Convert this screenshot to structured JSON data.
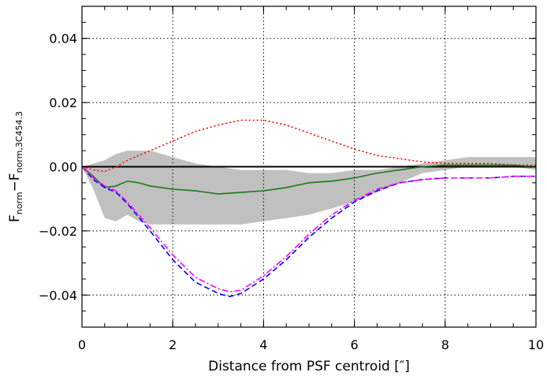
{
  "chart_data": {
    "type": "line",
    "title": "",
    "xlabel": "Distance from PSF centroid [″]",
    "ylabel": {
      "main_a": "F",
      "sub_a": "norm",
      "minus": "−",
      "main_b": "F",
      "sub_b": "norm,3C454.3"
    },
    "xlim": [
      0,
      10
    ],
    "ylim": [
      -0.05,
      0.05
    ],
    "grid": true,
    "x_ticks": [
      0,
      2,
      4,
      6,
      8,
      10
    ],
    "x_tick_labels": [
      "0",
      "2",
      "4",
      "6",
      "8",
      "10"
    ],
    "y_ticks": [
      -0.04,
      -0.02,
      0.0,
      0.02,
      0.04
    ],
    "y_tick_labels": [
      "−0.04",
      "−0.02",
      "0.00",
      "0.02",
      "0.04"
    ],
    "band": {
      "color": "#c0c0c0",
      "x": [
        0,
        0.25,
        0.5,
        0.75,
        1.0,
        1.25,
        1.5,
        2.0,
        2.5,
        3.0,
        3.5,
        4.0,
        4.5,
        5.0,
        5.5,
        6.0,
        6.5,
        7.0,
        7.5,
        8.0,
        8.5,
        9.0,
        9.5,
        10.0
      ],
      "upper": [
        0,
        0.001,
        0.002,
        0.004,
        0.005,
        0.005,
        0.005,
        0.003,
        0.001,
        0.0,
        -0.001,
        -0.001,
        -0.001,
        -0.002,
        -0.002,
        -0.001,
        -0.001,
        0.0,
        0.001,
        0.002,
        0.003,
        0.003,
        0.003,
        0.003
      ],
      "lower": [
        0,
        -0.007,
        -0.016,
        -0.017,
        -0.015,
        -0.017,
        -0.018,
        -0.018,
        -0.018,
        -0.018,
        -0.018,
        -0.017,
        -0.016,
        -0.015,
        -0.013,
        -0.011,
        -0.008,
        -0.005,
        -0.002,
        -0.001,
        0.0,
        0.0,
        0.0,
        -0.001
      ]
    },
    "series": [
      {
        "color": "#1a7a1a",
        "dash": "solid",
        "x": [
          0,
          0.25,
          0.5,
          0.75,
          1.0,
          1.25,
          1.5,
          2.0,
          2.5,
          3.0,
          3.5,
          4.0,
          4.5,
          5.0,
          5.5,
          6.0,
          6.5,
          7.0,
          7.5,
          8.0,
          8.5,
          9.0,
          9.5,
          10.0
        ],
        "y": [
          0,
          -0.003,
          -0.0065,
          -0.006,
          -0.0045,
          -0.005,
          -0.006,
          -0.007,
          -0.0075,
          -0.0085,
          -0.008,
          -0.0075,
          -0.0065,
          -0.005,
          -0.0045,
          -0.0035,
          -0.002,
          -0.001,
          0.0,
          0.0005,
          0.0005,
          0.0005,
          0.0005,
          0.0
        ]
      },
      {
        "color": "#ff0000",
        "dash": "dotted",
        "x": [
          0,
          0.25,
          0.5,
          0.75,
          1.0,
          1.5,
          2.0,
          2.5,
          3.0,
          3.5,
          4.0,
          4.5,
          5.0,
          5.5,
          6.0,
          6.5,
          7.0,
          7.5,
          8.0,
          8.5,
          9.0,
          9.5,
          10.0
        ],
        "y": [
          0,
          -0.001,
          -0.0015,
          0.0,
          0.002,
          0.005,
          0.008,
          0.011,
          0.013,
          0.0145,
          0.0145,
          0.013,
          0.0105,
          0.008,
          0.0055,
          0.0035,
          0.0025,
          0.0015,
          0.001,
          0.001,
          0.001,
          0.0005,
          0.0005
        ]
      },
      {
        "color": "#0000ff",
        "dash": "dashed",
        "x": [
          0,
          0.25,
          0.5,
          0.75,
          1.0,
          1.5,
          2.0,
          2.5,
          3.0,
          3.25,
          3.5,
          4.0,
          4.5,
          5.0,
          5.5,
          6.0,
          6.5,
          7.0,
          7.5,
          8.0,
          8.5,
          9.0,
          9.5,
          10.0
        ],
        "y": [
          0,
          -0.004,
          -0.0065,
          -0.008,
          -0.0115,
          -0.02,
          -0.029,
          -0.036,
          -0.0395,
          -0.0405,
          -0.0395,
          -0.035,
          -0.029,
          -0.022,
          -0.016,
          -0.011,
          -0.0075,
          -0.005,
          -0.004,
          -0.0035,
          -0.0035,
          -0.0035,
          -0.003,
          -0.003
        ]
      },
      {
        "color": "#ff00ff",
        "dash": "dashdot",
        "x": [
          0,
          0.25,
          0.5,
          0.75,
          1.0,
          1.5,
          2.0,
          2.5,
          3.0,
          3.25,
          3.5,
          4.0,
          4.5,
          5.0,
          5.5,
          6.0,
          6.5,
          7.0,
          7.5,
          8.0,
          8.5,
          9.0,
          9.5,
          10.0
        ],
        "y": [
          0,
          -0.0035,
          -0.006,
          -0.0075,
          -0.011,
          -0.019,
          -0.0275,
          -0.0345,
          -0.038,
          -0.039,
          -0.0385,
          -0.034,
          -0.028,
          -0.021,
          -0.015,
          -0.0105,
          -0.007,
          -0.005,
          -0.004,
          -0.0035,
          -0.0035,
          -0.0035,
          -0.003,
          -0.003
        ]
      }
    ],
    "zero_line_color": "#000000"
  }
}
